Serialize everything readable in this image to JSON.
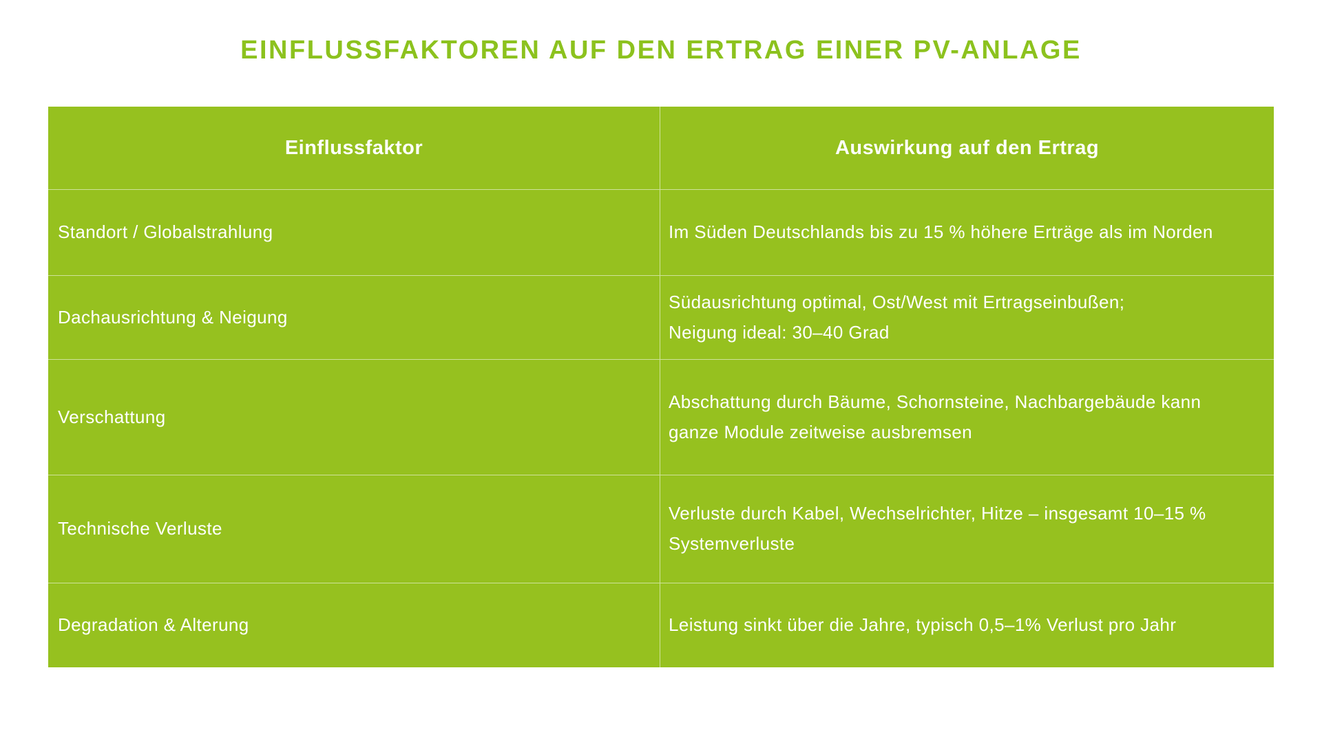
{
  "title": "EINFLUSSFAKTOREN AUF DEN ERTRAG EINER PV-ANLAGE",
  "colors": {
    "green": "#96c11f",
    "title_green": "#8cc21e",
    "divider": "rgba(255,255,255,0.55)",
    "text": "#ffffff",
    "background": "#ffffff"
  },
  "table": {
    "headers": [
      "Einflussfaktor",
      "Auswirkung auf den Ertrag"
    ],
    "rows": [
      {
        "factor": "Standort / Globalstrahlung",
        "effect": "Im Süden Deutschlands bis zu 15 % höhere Erträge als im Norden"
      },
      {
        "factor": "Dachausrichtung & Neigung",
        "effect": "Südausrichtung optimal, Ost/West mit Ertragseinbußen;\nNeigung ideal: 30–40 Grad"
      },
      {
        "factor": "Verschattung",
        "effect": "Abschattung durch Bäume, Schornsteine, Nachbargebäude kann\nganze Module zeitweise ausbremsen"
      },
      {
        "factor": "Technische Verluste",
        "effect": "Verluste durch Kabel, Wechselrichter, Hitze – insgesamt 10–15 %\nSystemverluste"
      },
      {
        "factor": "Degradation & Alterung",
        "effect": "Leistung sinkt über die Jahre, typisch 0,5–1% Verlust pro Jahr"
      }
    ]
  }
}
